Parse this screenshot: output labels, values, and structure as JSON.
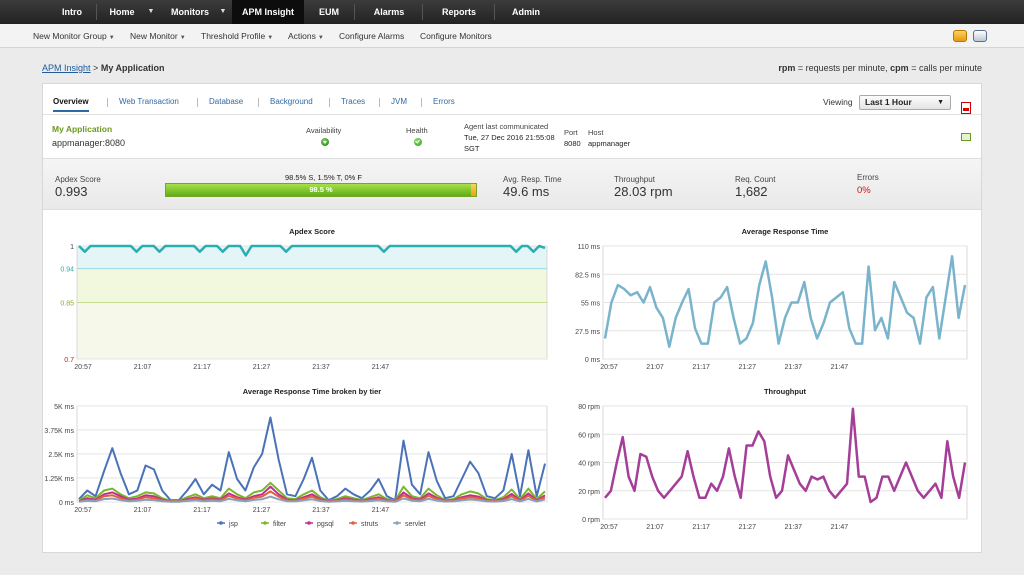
{
  "topnav": {
    "items": [
      "Intro",
      "Home",
      "Monitors",
      "APM Insight",
      "EUM",
      "Alarms",
      "Reports",
      "Admin"
    ],
    "active": "APM Insight"
  },
  "subnav": {
    "items": [
      "New Monitor Group",
      "New Monitor",
      "Threshold Profile",
      "Actions",
      "Configure Alarms",
      "Configure Monitors"
    ],
    "icons": [
      "settings-icon",
      "print-icon"
    ]
  },
  "breadcrumb": {
    "root": "APM Insight",
    "separator": ">",
    "current": "My Application"
  },
  "legend": {
    "rpm_key": "rpm",
    "rpm_text": "= requests per minute,",
    "cpm_key": "cpm",
    "cpm_text": "= calls per minute"
  },
  "tabs": [
    "Overview",
    "Web Transaction",
    "Database",
    "Background",
    "Traces",
    "JVM",
    "Errors"
  ],
  "viewing": {
    "label": "Viewing",
    "value": "Last 1 Hour"
  },
  "app": {
    "name": "My Application",
    "host_port": "appmanager:8080",
    "availability_label": "Availability",
    "health_label": "Health",
    "agent_label": "Agent last communicated",
    "agent_value_1": "Tue, 27 Dec 2016 21:55:08",
    "agent_value_2": "SGT",
    "port_label": "Port",
    "port_value": "8080",
    "host_label": "Host",
    "host_value": "appmanager"
  },
  "metrics": {
    "apdex_label": "Apdex Score",
    "apdex_value": "0.993",
    "apdex_breakdown": "98.5% S, 1.5% T, 0% F",
    "apdex_bar_text": "98.5 %",
    "satisfied_fraction": 0.985,
    "tolerating_fraction": 0.015,
    "resp_label": "Avg. Resp. Time",
    "resp_value": "49.6 ms",
    "throughput_label": "Throughput",
    "throughput_value": "28.03 rpm",
    "req_label": "Req. Count",
    "req_value": "1,682",
    "errors_label": "Errors",
    "errors_value": "0%"
  },
  "colors": {
    "apdex_line": "#2aaeb0",
    "response_line": "#7ab3cc",
    "throughput_line": "#a43e98",
    "jsp": "#4a72b8",
    "filter": "#7ab52e",
    "pgsql": "#c0308a",
    "struts": "#e06040",
    "servlet": "#8aa0b8"
  },
  "chart_data": [
    {
      "type": "line",
      "title": "Apdex Score",
      "x_ticks": [
        "20:57",
        "21:07",
        "21:17",
        "21:27",
        "21:37",
        "21:47"
      ],
      "y_ticks": [
        "1",
        "0.94",
        "0.85",
        "0.7"
      ],
      "ylim": [
        0.7,
        1
      ],
      "zones": [
        {
          "from": 0.94,
          "to": 1,
          "color": "#e4f5f8"
        },
        {
          "from": 0.85,
          "to": 0.94,
          "color": "#f1f8de"
        },
        {
          "from": 0.7,
          "to": 0.85,
          "color": "#f6f9ea"
        }
      ],
      "series": [
        {
          "values": [
            1,
            0.985,
            1,
            1,
            1,
            1,
            1,
            1,
            1,
            1,
            0.985,
            1,
            1,
            1,
            0.985,
            1,
            1,
            1,
            1,
            1,
            1,
            0.985,
            1,
            1,
            1,
            0.985,
            1,
            1,
            1,
            0.975,
            1,
            1,
            1,
            1,
            1,
            1,
            0.985,
            1,
            1,
            1,
            1,
            1,
            1,
            1,
            1,
            1,
            1,
            1,
            1,
            1,
            1,
            1,
            1,
            0.985,
            1,
            1,
            1,
            1,
            1,
            1,
            1,
            1,
            1,
            1,
            1,
            1,
            1,
            1,
            1,
            1,
            1,
            1,
            1,
            1,
            1,
            1,
            0.985,
            1,
            1,
            0.985,
            1,
            0.995
          ]
        }
      ]
    },
    {
      "type": "line",
      "title": "Average Response Time",
      "x_ticks": [
        "20:57",
        "21:07",
        "21:17",
        "21:27",
        "21:37",
        "21:47"
      ],
      "y_ticks": [
        "110 ms",
        "82.5 ms",
        "55 ms",
        "27.5 ms",
        "0 ms"
      ],
      "ylim": [
        0,
        110
      ],
      "series": [
        {
          "values": [
            20,
            55,
            72,
            68,
            62,
            65,
            55,
            70,
            50,
            40,
            12,
            40,
            55,
            68,
            30,
            15,
            15,
            55,
            60,
            70,
            40,
            15,
            20,
            35,
            72,
            95,
            60,
            15,
            40,
            55,
            55,
            75,
            40,
            20,
            35,
            55,
            60,
            65,
            30,
            15,
            15,
            90,
            28,
            40,
            20,
            75,
            60,
            45,
            40,
            15,
            60,
            70,
            20,
            60,
            100,
            40,
            72
          ]
        }
      ]
    },
    {
      "type": "line",
      "title": "Average Response Time broken by tier",
      "x_ticks": [
        "20:57",
        "21:07",
        "21:17",
        "21:27",
        "21:37",
        "21:47"
      ],
      "y_ticks": [
        "5K ms",
        "3.75K ms",
        "2.5K ms",
        "1.25K ms",
        "0 ms"
      ],
      "ylim": [
        0,
        5000
      ],
      "series": [
        {
          "name": "jsp",
          "values": [
            150,
            600,
            300,
            1600,
            2800,
            1500,
            400,
            600,
            1900,
            1700,
            600,
            100,
            100,
            600,
            1200,
            400,
            900,
            600,
            2600,
            1200,
            600,
            1800,
            2500,
            4400,
            2200,
            400,
            300,
            1200,
            2300,
            600,
            100,
            300,
            700,
            400,
            200,
            600,
            1200,
            300,
            100,
            3200,
            900,
            400,
            2600,
            1100,
            200,
            300,
            1200,
            2100,
            1500,
            300,
            200,
            600,
            2500,
            300,
            2700,
            300,
            2000
          ]
        },
        {
          "name": "filter",
          "values": [
            80,
            350,
            200,
            600,
            700,
            400,
            200,
            300,
            500,
            450,
            200,
            60,
            60,
            250,
            400,
            200,
            300,
            200,
            700,
            400,
            200,
            500,
            600,
            1000,
            600,
            200,
            150,
            400,
            600,
            250,
            60,
            150,
            300,
            200,
            100,
            250,
            400,
            150,
            60,
            800,
            300,
            200,
            700,
            350,
            100,
            150,
            400,
            550,
            450,
            150,
            100,
            250,
            650,
            150,
            700,
            150,
            550
          ]
        },
        {
          "name": "pgsql",
          "values": [
            40,
            200,
            120,
            400,
            500,
            300,
            120,
            180,
            350,
            300,
            120,
            30,
            30,
            150,
            250,
            120,
            200,
            120,
            450,
            250,
            120,
            300,
            400,
            800,
            400,
            120,
            90,
            250,
            400,
            150,
            30,
            90,
            200,
            120,
            60,
            150,
            250,
            90,
            30,
            500,
            200,
            120,
            450,
            220,
            60,
            90,
            250,
            350,
            280,
            90,
            60,
            150,
            420,
            90,
            450,
            90,
            350
          ]
        },
        {
          "name": "struts",
          "values": [
            20,
            120,
            80,
            300,
            350,
            200,
            80,
            120,
            250,
            200,
            80,
            20,
            20,
            100,
            180,
            80,
            140,
            80,
            320,
            180,
            80,
            220,
            280,
            550,
            280,
            80,
            60,
            180,
            280,
            100,
            20,
            60,
            140,
            80,
            40,
            100,
            180,
            60,
            20,
            350,
            140,
            80,
            320,
            160,
            40,
            60,
            180,
            250,
            200,
            60,
            40,
            100,
            300,
            60,
            320,
            60,
            250
          ]
        },
        {
          "name": "servlet",
          "values": [
            10,
            60,
            40,
            150,
            180,
            100,
            40,
            60,
            120,
            100,
            40,
            10,
            10,
            50,
            90,
            40,
            70,
            40,
            160,
            90,
            40,
            110,
            140,
            280,
            140,
            40,
            30,
            90,
            140,
            50,
            10,
            30,
            70,
            40,
            20,
            50,
            90,
            30,
            10,
            180,
            70,
            40,
            160,
            80,
            20,
            30,
            90,
            130,
            100,
            30,
            20,
            50,
            150,
            30,
            160,
            30,
            130
          ]
        }
      ]
    },
    {
      "type": "line",
      "title": "Throughput",
      "x_ticks": [
        "20:57",
        "21:07",
        "21:17",
        "21:27",
        "21:37",
        "21:47"
      ],
      "y_ticks": [
        "80 rpm",
        "60 rpm",
        "40 rpm",
        "20 rpm",
        "0 rpm"
      ],
      "ylim": [
        0,
        80
      ],
      "series": [
        {
          "values": [
            15,
            20,
            40,
            58,
            30,
            20,
            46,
            44,
            30,
            20,
            15,
            20,
            25,
            30,
            48,
            30,
            15,
            15,
            25,
            20,
            30,
            50,
            30,
            15,
            52,
            52,
            62,
            55,
            30,
            15,
            20,
            45,
            35,
            25,
            20,
            30,
            28,
            30,
            20,
            15,
            20,
            25,
            78,
            30,
            30,
            12,
            15,
            30,
            30,
            20,
            30,
            40,
            30,
            20,
            15,
            20,
            25,
            15,
            55,
            30,
            15,
            40
          ]
        }
      ]
    }
  ],
  "tier_legend": [
    "jsp",
    "filter",
    "pgsql",
    "struts",
    "servlet"
  ]
}
